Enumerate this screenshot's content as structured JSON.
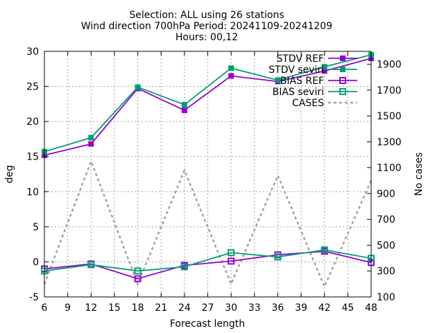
{
  "title_lines": [
    "Selection: ALL using    26 stations",
    "Wind direction 700hPa   Period: 20241109-20241209",
    "Hours: 00,12"
  ],
  "colors": {
    "ref": "#9400d3",
    "seviri": "#009e73",
    "cases": "#a0a0a0"
  },
  "chart_data": {
    "type": "line",
    "xlabel": "Forecast length",
    "ylabel": "deg",
    "y2label": "No cases",
    "x": [
      6,
      12,
      18,
      24,
      30,
      36,
      42,
      48
    ],
    "xticks": [
      6,
      9,
      12,
      15,
      18,
      21,
      24,
      27,
      30,
      33,
      36,
      39,
      42,
      45,
      48
    ],
    "xlim": [
      6,
      48
    ],
    "ylim": [
      -5,
      30
    ],
    "yticks": [
      -5,
      0,
      5,
      10,
      15,
      20,
      25,
      30
    ],
    "y2lim": [
      100,
      2000
    ],
    "y2ticks": [
      100,
      300,
      500,
      700,
      900,
      1100,
      1300,
      1500,
      1700,
      1900
    ],
    "grid": true,
    "legend_position": "top-right",
    "series": [
      {
        "name": "STDV REF",
        "axis": "y1",
        "color_key": "ref",
        "marker": "filled-square",
        "values": [
          15.2,
          16.8,
          24.7,
          21.6,
          26.5,
          25.7,
          27.2,
          29.0
        ]
      },
      {
        "name": "STDV seviri",
        "axis": "y1",
        "color_key": "seviri",
        "marker": "filled-square",
        "values": [
          15.7,
          17.7,
          24.9,
          22.4,
          27.6,
          25.9,
          27.8,
          29.5
        ]
      },
      {
        "name": "BIAS REF",
        "axis": "y1",
        "color_key": "ref",
        "marker": "open-square",
        "values": [
          -1.0,
          -0.3,
          -2.4,
          -0.5,
          0.1,
          1.0,
          1.5,
          -0.1
        ]
      },
      {
        "name": "BIAS seviri",
        "axis": "y1",
        "color_key": "seviri",
        "marker": "open-square",
        "values": [
          -1.3,
          -0.4,
          -1.3,
          -0.7,
          1.3,
          0.7,
          1.7,
          0.5
        ]
      },
      {
        "name": "CASES",
        "axis": "y2",
        "color_key": "cases",
        "marker": "none",
        "dashed": true,
        "x": [
          6,
          12,
          18,
          24,
          30,
          36,
          42,
          48
        ],
        "values": [
          200,
          1150,
          200,
          1080,
          200,
          1040,
          180,
          1000
        ]
      }
    ]
  }
}
